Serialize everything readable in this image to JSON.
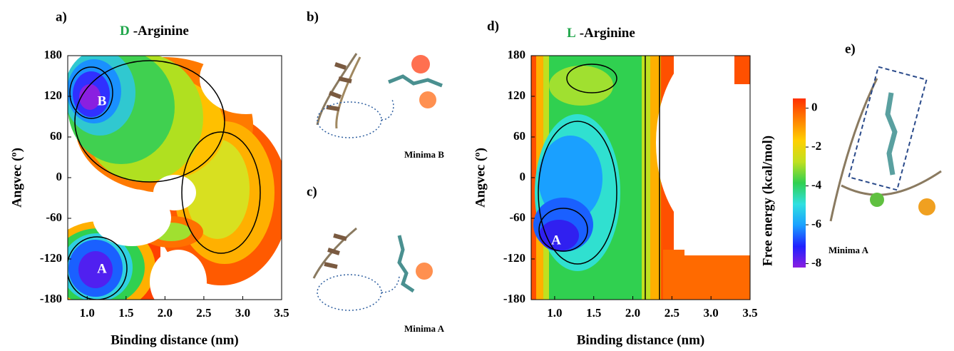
{
  "chart_data": [
    {
      "type": "contour",
      "panel_label": "a)",
      "title_prefix": "D",
      "title_prefix_color": "#1fa64a",
      "title": "-Arginine",
      "xlabel": "Binding distance (nm)",
      "ylabel": "Angvec (º)",
      "xlim": [
        0.75,
        3.5
      ],
      "ylim": [
        -180,
        180
      ],
      "xticks": [
        {
          "value": 1,
          "label": "1.0"
        },
        {
          "value": 1.5,
          "label": "1.5"
        },
        {
          "value": 2,
          "label": "2.0"
        },
        {
          "value": 2.5,
          "label": "2.5"
        },
        {
          "value": 3,
          "label": "3.0"
        },
        {
          "value": 3.5,
          "label": "3.5"
        }
      ],
      "yticks": [
        -180,
        -120,
        -60,
        0,
        60,
        120,
        180
      ],
      "annotations": [
        "B",
        "A"
      ]
    },
    {
      "type": "contour",
      "panel_label": "d)",
      "title_prefix": "L",
      "title_prefix_color": "#1fa64a",
      "title": "-Arginine",
      "xlabel": "Binding distance (nm)",
      "ylabel": "Angvec (º)",
      "xlim": [
        0.7,
        3.5
      ],
      "ylim": [
        -180,
        180
      ],
      "xticks": [
        {
          "value": 1,
          "label": "1.0"
        },
        {
          "value": 1.5,
          "label": "1.5"
        },
        {
          "value": 2,
          "label": "2.0"
        },
        {
          "value": 2.5,
          "label": "2.5"
        },
        {
          "value": 3,
          "label": "3.0"
        },
        {
          "value": 3.5,
          "label": "3.5"
        }
      ],
      "yticks": [
        -180,
        -120,
        -60,
        0,
        60,
        120,
        180
      ],
      "annotations": [
        "A"
      ]
    },
    {
      "type": "colorbar",
      "label": "Free energy (kcal/mol)",
      "lim": [
        -8.2,
        0.5
      ],
      "ticks": [
        0,
        -2,
        -4,
        -6,
        -8
      ],
      "colors": [
        "#8a1fe0",
        "#2020ff",
        "#1aa0ff",
        "#30e0e0",
        "#30d050",
        "#c0e020",
        "#ffd000",
        "#ff8000",
        "#ff3000"
      ]
    }
  ],
  "insets": [
    {
      "label": "b)",
      "caption": "Minima B"
    },
    {
      "label": "c)",
      "caption": "Minima A"
    },
    {
      "label": "e)",
      "caption": "Minima A"
    }
  ]
}
